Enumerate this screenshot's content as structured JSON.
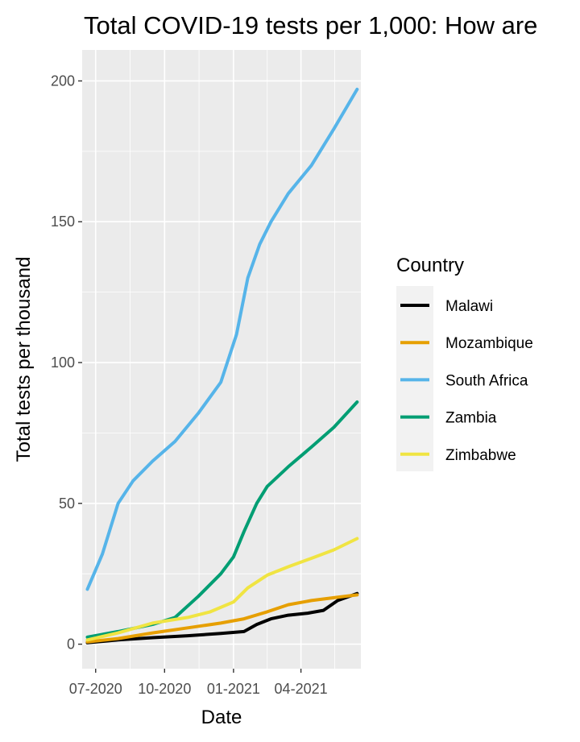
{
  "chart_data": {
    "type": "line",
    "title": "Total COVID-19 tests per 1,000: How are",
    "xlabel": "Date",
    "ylabel": "Total tests per thousand",
    "x_ticks": [
      "07-2020",
      "10-2020",
      "01-2021",
      "04-2021"
    ],
    "y_ticks": [
      0,
      50,
      100,
      150,
      200
    ],
    "ylim": [
      -8.7,
      211
    ],
    "grid": true,
    "legend": {
      "title": "Country",
      "placement": "right"
    },
    "series": [
      {
        "name": "Malawi",
        "color": "#000000",
        "points": [
          [
            "2020-06-20",
            0.5
          ],
          [
            "2020-07-31",
            1.5
          ],
          [
            "2020-09-15",
            2.3
          ],
          [
            "2020-11-01",
            3.0
          ],
          [
            "2020-12-15",
            3.8
          ],
          [
            "2021-01-15",
            4.5
          ],
          [
            "2021-02-01",
            7.0
          ],
          [
            "2021-02-20",
            9.0
          ],
          [
            "2021-03-15",
            10.3
          ],
          [
            "2021-04-10",
            11.0
          ],
          [
            "2021-05-01",
            12.0
          ],
          [
            "2021-05-20",
            15.5
          ],
          [
            "2021-06-15",
            18.0
          ]
        ]
      },
      {
        "name": "Mozambique",
        "color": "#e69f00",
        "points": [
          [
            "2020-06-20",
            0.8
          ],
          [
            "2020-07-31",
            2.0
          ],
          [
            "2020-09-15",
            4.0
          ],
          [
            "2020-11-01",
            5.8
          ],
          [
            "2020-12-15",
            7.5
          ],
          [
            "2021-01-15",
            9.0
          ],
          [
            "2021-02-15",
            11.5
          ],
          [
            "2021-03-15",
            14.0
          ],
          [
            "2021-04-15",
            15.5
          ],
          [
            "2021-05-15",
            16.5
          ],
          [
            "2021-06-15",
            17.5
          ]
        ]
      },
      {
        "name": "South Africa",
        "color": "#56b4e9",
        "points": [
          [
            "2020-06-20",
            19.5
          ],
          [
            "2020-07-10",
            32.0
          ],
          [
            "2020-07-31",
            50.0
          ],
          [
            "2020-08-20",
            58.0
          ],
          [
            "2020-09-15",
            65.0
          ],
          [
            "2020-10-15",
            72.0
          ],
          [
            "2020-11-15",
            82.0
          ],
          [
            "2020-12-15",
            93.0
          ],
          [
            "2021-01-05",
            110.0
          ],
          [
            "2021-01-20",
            130.0
          ],
          [
            "2021-02-05",
            142.0
          ],
          [
            "2021-02-20",
            150.0
          ],
          [
            "2021-03-15",
            160.0
          ],
          [
            "2021-04-15",
            170.0
          ],
          [
            "2021-05-15",
            183.0
          ],
          [
            "2021-06-15",
            197.0
          ]
        ]
      },
      {
        "name": "Zambia",
        "color": "#009e73",
        "points": [
          [
            "2020-06-20",
            2.5
          ],
          [
            "2020-07-31",
            4.5
          ],
          [
            "2020-09-15",
            7.0
          ],
          [
            "2020-10-15",
            9.5
          ],
          [
            "2020-11-15",
            17.0
          ],
          [
            "2020-12-15",
            25.0
          ],
          [
            "2021-01-01",
            31.0
          ],
          [
            "2021-01-15",
            40.0
          ],
          [
            "2021-02-01",
            50.0
          ],
          [
            "2021-02-15",
            56.0
          ],
          [
            "2021-03-15",
            63.0
          ],
          [
            "2021-04-15",
            70.0
          ],
          [
            "2021-05-15",
            77.0
          ],
          [
            "2021-06-15",
            86.0
          ]
        ]
      },
      {
        "name": "Zimbabwe",
        "color": "#f0e442",
        "points": [
          [
            "2020-06-20",
            1.5
          ],
          [
            "2020-07-31",
            4.0
          ],
          [
            "2020-09-15",
            7.5
          ],
          [
            "2020-11-01",
            9.5
          ],
          [
            "2020-12-01",
            11.5
          ],
          [
            "2021-01-01",
            15.0
          ],
          [
            "2021-01-20",
            20.0
          ],
          [
            "2021-02-15",
            24.5
          ],
          [
            "2021-03-15",
            27.5
          ],
          [
            "2021-04-15",
            30.5
          ],
          [
            "2021-05-15",
            33.5
          ],
          [
            "2021-06-15",
            37.5
          ]
        ]
      }
    ]
  }
}
